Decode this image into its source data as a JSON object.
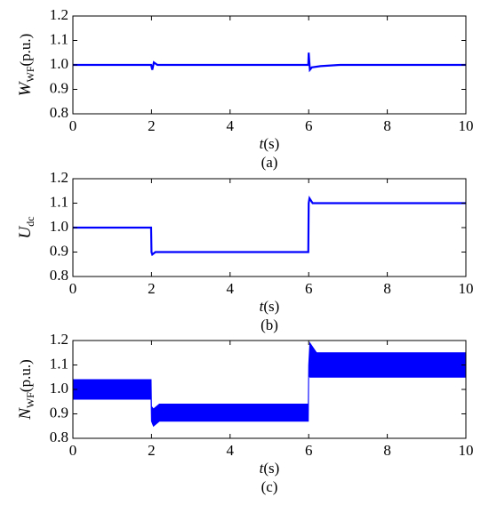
{
  "chart_data": [
    {
      "type": "line",
      "caption": "(a)",
      "ylabel": {
        "main": "W",
        "sub": "WF",
        "unit": "(p.u.)"
      },
      "xlabel": {
        "main": "t",
        "unit": "(s)"
      },
      "x": [
        0,
        1.99,
        2.02,
        2.06,
        2.15,
        2.3,
        5.99,
        6.0,
        6.03,
        6.08,
        6.3,
        6.8,
        10
      ],
      "series": [
        {
          "color": "#0000ff",
          "values": [
            1,
            1,
            0.98,
            1.01,
            1.0,
            1,
            1,
            1.05,
            0.98,
            0.99,
            0.995,
            1,
            1
          ]
        }
      ],
      "xlim": [
        0,
        10
      ],
      "xticks": [
        0,
        2,
        4,
        6,
        8,
        10
      ],
      "ylim": [
        0.8,
        1.2
      ],
      "yticks": [
        0.8,
        0.9,
        {
          "value": 1,
          "label": "1.0"
        },
        1.1,
        1.2
      ]
    },
    {
      "type": "line",
      "caption": "(b)",
      "ylabel": {
        "main": "U",
        "sub": "dc",
        "unit": ""
      },
      "xlabel": {
        "main": "t",
        "unit": "(s)"
      },
      "x": [
        0,
        1.99,
        2.0,
        2.02,
        2.1,
        5.99,
        6.0,
        6.02,
        6.1,
        10
      ],
      "series": [
        {
          "color": "#0000ff",
          "values": [
            1,
            1,
            0.9,
            0.89,
            0.9,
            0.9,
            1.1,
            1.12,
            1.1,
            1.1
          ]
        }
      ],
      "xlim": [
        0,
        10
      ],
      "xticks": [
        0,
        2,
        4,
        6,
        8,
        10
      ],
      "ylim": [
        0.8,
        1.2
      ],
      "yticks": [
        0.8,
        0.9,
        {
          "value": 1,
          "label": "1.0"
        },
        1.1,
        1.2
      ]
    },
    {
      "type": "band",
      "caption": "(c)",
      "ylabel": {
        "main": "N",
        "sub": "WF",
        "unit": "(p.u.)"
      },
      "xlabel": {
        "main": "t",
        "unit": "(s)"
      },
      "x": [
        0,
        1.99,
        2.0,
        2.05,
        2.2,
        5.99,
        6.0,
        6.03,
        6.2,
        10
      ],
      "series": [
        {
          "color": "#0000ff",
          "values": [
            1.04,
            1.04,
            0.93,
            0.92,
            0.94,
            0.94,
            1.1,
            1.19,
            1.15,
            1.15
          ]
        },
        {
          "color": "#0000ff",
          "values": [
            0.96,
            0.96,
            0.87,
            0.85,
            0.87,
            0.87,
            1.06,
            1.05,
            1.05,
            1.05
          ]
        }
      ],
      "xlim": [
        0,
        10
      ],
      "xticks": [
        0,
        2,
        4,
        6,
        8,
        10
      ],
      "ylim": [
        0.8,
        1.2
      ],
      "yticks": [
        0.8,
        0.9,
        {
          "value": 1,
          "label": "1.0"
        },
        1.1,
        1.2
      ]
    }
  ]
}
